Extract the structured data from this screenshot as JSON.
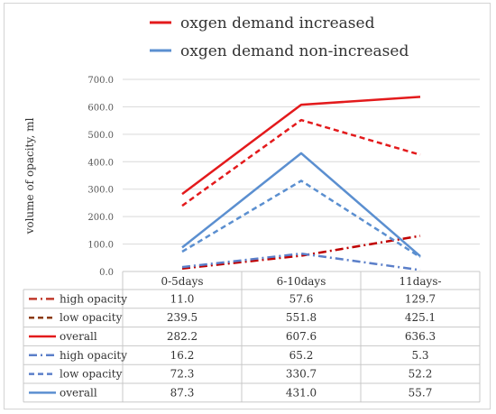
{
  "chart_data": {
    "type": "line",
    "title": "",
    "top_legend": [
      {
        "label": "oxgen demand increased",
        "color": "#e31a1c"
      },
      {
        "label": "oxgen demand non-increased",
        "color": "#5b8fd0"
      }
    ],
    "ylabel": "volume of opacity, ml",
    "xlabel": "",
    "ylim": [
      0,
      700
    ],
    "y_ticks": [
      "0.0",
      "100.0",
      "200.0",
      "300.0",
      "400.0",
      "500.0",
      "600.0",
      "700.0"
    ],
    "grid": "horizontal",
    "categories": [
      "0-5days",
      "6-10days",
      "11days-"
    ],
    "series": [
      {
        "name": "high opacity",
        "group": "oxgen demand increased",
        "style": "dash-dot",
        "color": "#c00000",
        "values": [
          11.0,
          57.6,
          129.7
        ],
        "labels": [
          "11.0",
          "57.6",
          "129.7"
        ]
      },
      {
        "name": "low opacity",
        "group": "oxgen demand increased",
        "style": "dashed",
        "color": "#e31a1c",
        "values": [
          239.5,
          551.8,
          425.1
        ],
        "labels": [
          "239.5",
          "551.8",
          "425.1"
        ]
      },
      {
        "name": "overall",
        "group": "oxgen demand increased",
        "style": "solid",
        "color": "#e31a1c",
        "values": [
          282.2,
          607.6,
          636.3
        ],
        "labels": [
          "282.2",
          "607.6",
          "636.3"
        ]
      },
      {
        "name": "high opacity",
        "group": "oxgen demand non-increased",
        "style": "dash-dot",
        "color": "#5b7fc9",
        "values": [
          16.2,
          65.2,
          5.3
        ],
        "labels": [
          "16.2",
          "65.2",
          "5.3"
        ]
      },
      {
        "name": "low opacity",
        "group": "oxgen demand non-increased",
        "style": "dashed",
        "color": "#5b8fd0",
        "values": [
          72.3,
          330.7,
          52.2
        ],
        "labels": [
          "72.3",
          "330.7",
          "52.2"
        ]
      },
      {
        "name": "overall",
        "group": "oxgen demand non-increased",
        "style": "solid",
        "color": "#5b8fd0",
        "values": [
          87.3,
          431.0,
          55.7
        ],
        "labels": [
          "87.3",
          "431.0",
          "55.7"
        ]
      }
    ],
    "table_legend_colors": [
      "#c0392b",
      "#8b3a0f",
      "#e31a1c",
      "#5b7fc9",
      "#5b7fc9",
      "#5b8fd0"
    ],
    "table_legend_styles": [
      "dash-dot",
      "dashed",
      "solid",
      "dash-dot",
      "dashed",
      "solid"
    ]
  }
}
